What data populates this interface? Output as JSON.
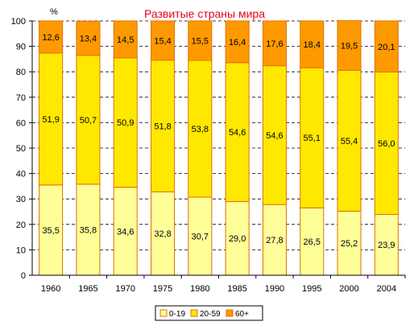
{
  "chart_data": {
    "type": "bar",
    "stacked": true,
    "title": "Развитые страны мира",
    "ylabel": "%",
    "xlabel": "",
    "ylim": [
      0,
      100
    ],
    "yticks": [
      0,
      10,
      20,
      30,
      40,
      50,
      60,
      70,
      80,
      90,
      100
    ],
    "categories": [
      "1960",
      "1965",
      "1970",
      "1975",
      "1980",
      "1985",
      "1990",
      "1995",
      "2000",
      "2004"
    ],
    "series": [
      {
        "name": "0-19",
        "color": "#FFFF99",
        "values": [
          35.5,
          35.8,
          34.6,
          32.8,
          30.7,
          29.0,
          27.8,
          26.5,
          25.2,
          23.9
        ],
        "labels": [
          "35,5",
          "35,8",
          "34,6",
          "32,8",
          "30,7",
          "29,0",
          "27,8",
          "26,5",
          "25,2",
          "23,9"
        ]
      },
      {
        "name": "20-59",
        "color": "#FFE800",
        "values": [
          51.9,
          50.7,
          50.9,
          51.8,
          53.8,
          54.6,
          54.6,
          55.1,
          55.4,
          56.0
        ],
        "labels": [
          "51,9",
          "50,7",
          "50,9",
          "51,8",
          "53,8",
          "54,6",
          "54,6",
          "55,1",
          "55,4",
          "56,0"
        ]
      },
      {
        "name": "60+",
        "color": "#FF9900",
        "values": [
          12.6,
          13.4,
          14.5,
          15.4,
          15.5,
          16.4,
          17.6,
          18.4,
          19.5,
          20.1
        ],
        "labels": [
          "12,6",
          "13,4",
          "14,5",
          "15,4",
          "15,5",
          "16,4",
          "17,6",
          "18,4",
          "19,5",
          "20,1"
        ]
      }
    ],
    "grid": true,
    "legend_position": "bottom",
    "colors": {
      "title": "#E8001C",
      "bar_outline": "#E07000",
      "axis": "#000000",
      "grid": "#000000"
    }
  }
}
